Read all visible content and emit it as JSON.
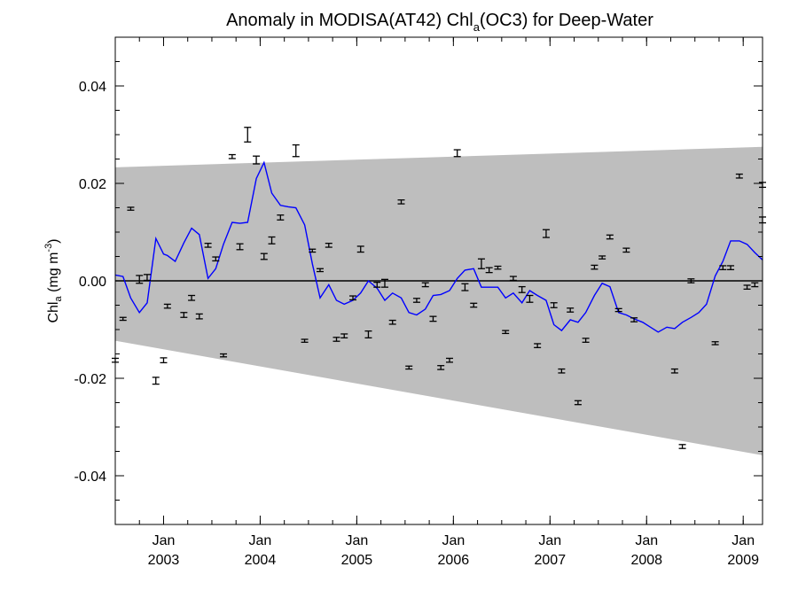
{
  "chart_data": {
    "type": "line",
    "title": "Anomaly in MODISA(AT42) Chl",
    "title_subscript": "a",
    "title_suffix": "(OC3) for Deep-Water",
    "ylabel_main": "Chl",
    "ylabel_sub": "a",
    "ylabel_units": " (mg m",
    "ylabel_sup": "-3",
    "ylabel_close": ")",
    "xlim": [
      2002.5,
      2009.2
    ],
    "ylim": [
      -0.05,
      0.05
    ],
    "yticks": [
      -0.04,
      -0.02,
      0.0,
      0.02,
      0.04
    ],
    "ytick_labels": [
      "-0.04",
      "-0.02",
      "0.00",
      "0.02",
      "0.04"
    ],
    "xticks": [
      {
        "value": 2003.0,
        "month": "Jan",
        "year": "2003"
      },
      {
        "value": 2004.0,
        "month": "Jan",
        "year": "2004"
      },
      {
        "value": 2005.0,
        "month": "Jan",
        "year": "2005"
      },
      {
        "value": 2006.0,
        "month": "Jan",
        "year": "2006"
      },
      {
        "value": 2007.0,
        "month": "Jan",
        "year": "2007"
      },
      {
        "value": 2008.0,
        "month": "Jan",
        "year": "2008"
      },
      {
        "value": 2009.0,
        "month": "Jan",
        "year": "2009"
      }
    ],
    "grid": false,
    "confidence_band": {
      "upper_start": 0.0233,
      "upper_end": 0.0275,
      "lower_start": -0.0123,
      "lower_end": -0.0358,
      "color": "#bebebe"
    },
    "zero_line": 0.0,
    "series": [
      {
        "kind": "line",
        "color": "#0000ff",
        "x": [
          2002.5,
          2002.58,
          2002.66,
          2002.75,
          2002.83,
          2002.92,
          2003.0,
          2003.04,
          2003.12,
          2003.21,
          2003.29,
          2003.37,
          2003.46,
          2003.54,
          2003.62,
          2003.71,
          2003.79,
          2003.87,
          2003.96,
          2004.04,
          2004.12,
          2004.21,
          2004.29,
          2004.37,
          2004.46,
          2004.54,
          2004.62,
          2004.71,
          2004.79,
          2004.87,
          2004.96,
          2005.04,
          2005.12,
          2005.21,
          2005.29,
          2005.37,
          2005.46,
          2005.54,
          2005.62,
          2005.71,
          2005.79,
          2005.87,
          2005.96,
          2006.04,
          2006.12,
          2006.21,
          2006.29,
          2006.37,
          2006.46,
          2006.54,
          2006.62,
          2006.71,
          2006.79,
          2006.87,
          2006.96,
          2007.04,
          2007.12,
          2007.21,
          2007.29,
          2007.37,
          2007.46,
          2007.54,
          2007.62,
          2007.71,
          2007.79,
          2007.87,
          2007.96,
          2008.04,
          2008.12,
          2008.21,
          2008.29,
          2008.37,
          2008.46,
          2008.54,
          2008.62,
          2008.71,
          2008.79,
          2008.87,
          2008.96,
          2009.04,
          2009.12,
          2009.2
        ],
        "y": [
          0.0012,
          0.0009,
          -0.0035,
          -0.0065,
          -0.0045,
          0.0087,
          0.0055,
          0.0052,
          0.004,
          0.0078,
          0.0108,
          0.0095,
          0.0005,
          0.0025,
          0.0075,
          0.012,
          0.0118,
          0.012,
          0.021,
          0.0243,
          0.018,
          0.0155,
          0.0152,
          0.015,
          0.0115,
          0.0035,
          -0.0035,
          -0.0008,
          -0.004,
          -0.0048,
          -0.004,
          -0.0025,
          0.0,
          -0.0015,
          -0.004,
          -0.0025,
          -0.0035,
          -0.0065,
          -0.007,
          -0.0058,
          -0.003,
          -0.0028,
          -0.002,
          0.0005,
          0.0022,
          0.0025,
          -0.0013,
          -0.0013,
          -0.0013,
          -0.0035,
          -0.0025,
          -0.0045,
          -0.002,
          -0.003,
          -0.004,
          -0.009,
          -0.0102,
          -0.008,
          -0.0085,
          -0.0065,
          -0.003,
          -0.0005,
          -0.0012,
          -0.0065,
          -0.007,
          -0.0078,
          -0.0085,
          -0.0095,
          -0.0105,
          -0.0095,
          -0.0098,
          -0.0085,
          -0.0075,
          -0.0065,
          -0.0048,
          0.001,
          0.004,
          0.0082,
          0.0082,
          0.0075,
          0.0058,
          0.0043
        ]
      },
      {
        "kind": "errorbar",
        "color": "#000000",
        "points": [
          {
            "x": 2002.5,
            "y": -0.0163,
            "err": 0.0004
          },
          {
            "x": 2002.58,
            "y": -0.0078,
            "err": 0.0003
          },
          {
            "x": 2002.66,
            "y": 0.0148,
            "err": 0.0003
          },
          {
            "x": 2002.75,
            "y": 0.0003,
            "err": 0.0008
          },
          {
            "x": 2002.83,
            "y": 0.0007,
            "err": 0.0006
          },
          {
            "x": 2002.92,
            "y": -0.0205,
            "err": 0.0007
          },
          {
            "x": 2003.0,
            "y": -0.0163,
            "err": 0.0005
          },
          {
            "x": 2003.04,
            "y": -0.0052,
            "err": 0.0004
          },
          {
            "x": 2003.21,
            "y": -0.007,
            "err": 0.0005
          },
          {
            "x": 2003.29,
            "y": -0.0035,
            "err": 0.0005
          },
          {
            "x": 2003.37,
            "y": -0.0073,
            "err": 0.0005
          },
          {
            "x": 2003.46,
            "y": 0.0073,
            "err": 0.0004
          },
          {
            "x": 2003.54,
            "y": 0.0045,
            "err": 0.0004
          },
          {
            "x": 2003.62,
            "y": -0.0153,
            "err": 0.0003
          },
          {
            "x": 2003.71,
            "y": 0.0255,
            "err": 0.0004
          },
          {
            "x": 2003.79,
            "y": 0.007,
            "err": 0.0006
          },
          {
            "x": 2003.87,
            "y": 0.03,
            "err": 0.0015
          },
          {
            "x": 2003.96,
            "y": 0.0248,
            "err": 0.0008
          },
          {
            "x": 2004.04,
            "y": 0.005,
            "err": 0.0006
          },
          {
            "x": 2004.12,
            "y": 0.0083,
            "err": 0.0007
          },
          {
            "x": 2004.21,
            "y": 0.013,
            "err": 0.0005
          },
          {
            "x": 2004.37,
            "y": 0.0267,
            "err": 0.0012
          },
          {
            "x": 2004.46,
            "y": -0.0123,
            "err": 0.0003
          },
          {
            "x": 2004.54,
            "y": 0.0062,
            "err": 0.0003
          },
          {
            "x": 2004.62,
            "y": 0.0022,
            "err": 0.0003
          },
          {
            "x": 2004.71,
            "y": 0.0073,
            "err": 0.0004
          },
          {
            "x": 2004.79,
            "y": -0.012,
            "err": 0.0004
          },
          {
            "x": 2004.87,
            "y": -0.0113,
            "err": 0.0004
          },
          {
            "x": 2004.96,
            "y": -0.0035,
            "err": 0.0004
          },
          {
            "x": 2005.04,
            "y": 0.0065,
            "err": 0.0006
          },
          {
            "x": 2005.12,
            "y": -0.011,
            "err": 0.0007
          },
          {
            "x": 2005.21,
            "y": -0.0008,
            "err": 0.0005
          },
          {
            "x": 2005.29,
            "y": -0.0005,
            "err": 0.0008
          },
          {
            "x": 2005.37,
            "y": -0.0085,
            "err": 0.0004
          },
          {
            "x": 2005.46,
            "y": 0.0162,
            "err": 0.0004
          },
          {
            "x": 2005.54,
            "y": -0.0178,
            "err": 0.0003
          },
          {
            "x": 2005.62,
            "y": -0.004,
            "err": 0.0004
          },
          {
            "x": 2005.71,
            "y": -0.0008,
            "err": 0.0004
          },
          {
            "x": 2005.79,
            "y": -0.0078,
            "err": 0.0005
          },
          {
            "x": 2005.87,
            "y": -0.0178,
            "err": 0.0004
          },
          {
            "x": 2005.96,
            "y": -0.0163,
            "err": 0.0004
          },
          {
            "x": 2006.04,
            "y": 0.0262,
            "err": 0.0007
          },
          {
            "x": 2006.12,
            "y": -0.0013,
            "err": 0.0007
          },
          {
            "x": 2006.21,
            "y": -0.005,
            "err": 0.0004
          },
          {
            "x": 2006.29,
            "y": 0.0035,
            "err": 0.001
          },
          {
            "x": 2006.37,
            "y": 0.0022,
            "err": 0.0005
          },
          {
            "x": 2006.46,
            "y": 0.0027,
            "err": 0.0003
          },
          {
            "x": 2006.54,
            "y": -0.0105,
            "err": 0.0003
          },
          {
            "x": 2006.62,
            "y": 0.0005,
            "err": 0.0004
          },
          {
            "x": 2006.71,
            "y": -0.0018,
            "err": 0.0006
          },
          {
            "x": 2006.79,
            "y": -0.0037,
            "err": 0.0007
          },
          {
            "x": 2006.87,
            "y": -0.0133,
            "err": 0.0004
          },
          {
            "x": 2006.96,
            "y": 0.0097,
            "err": 0.0008
          },
          {
            "x": 2007.04,
            "y": -0.005,
            "err": 0.0005
          },
          {
            "x": 2007.12,
            "y": -0.0185,
            "err": 0.0004
          },
          {
            "x": 2007.21,
            "y": -0.006,
            "err": 0.0004
          },
          {
            "x": 2007.29,
            "y": -0.025,
            "err": 0.0004
          },
          {
            "x": 2007.37,
            "y": -0.0122,
            "err": 0.0004
          },
          {
            "x": 2007.46,
            "y": 0.0028,
            "err": 0.0004
          },
          {
            "x": 2007.54,
            "y": 0.0048,
            "err": 0.0003
          },
          {
            "x": 2007.62,
            "y": 0.009,
            "err": 0.0004
          },
          {
            "x": 2007.71,
            "y": -0.006,
            "err": 0.0003
          },
          {
            "x": 2007.79,
            "y": 0.0063,
            "err": 0.0004
          },
          {
            "x": 2007.87,
            "y": -0.008,
            "err": 0.0004
          },
          {
            "x": 2008.29,
            "y": -0.0185,
            "err": 0.0004
          },
          {
            "x": 2008.37,
            "y": -0.034,
            "err": 0.0004
          },
          {
            "x": 2008.46,
            "y": 0.0,
            "err": 0.0004
          },
          {
            "x": 2008.71,
            "y": -0.0128,
            "err": 0.0003
          },
          {
            "x": 2008.79,
            "y": 0.0027,
            "err": 0.0004
          },
          {
            "x": 2008.87,
            "y": 0.0027,
            "err": 0.0004
          },
          {
            "x": 2008.96,
            "y": 0.0215,
            "err": 0.0004
          },
          {
            "x": 2009.04,
            "y": -0.0013,
            "err": 0.0004
          },
          {
            "x": 2009.12,
            "y": -0.0008,
            "err": 0.0004
          },
          {
            "x": 2009.2,
            "y": 0.0125,
            "err": 0.0006
          },
          {
            "x": 2009.2,
            "y": 0.0197,
            "err": 0.0005
          }
        ]
      }
    ]
  }
}
